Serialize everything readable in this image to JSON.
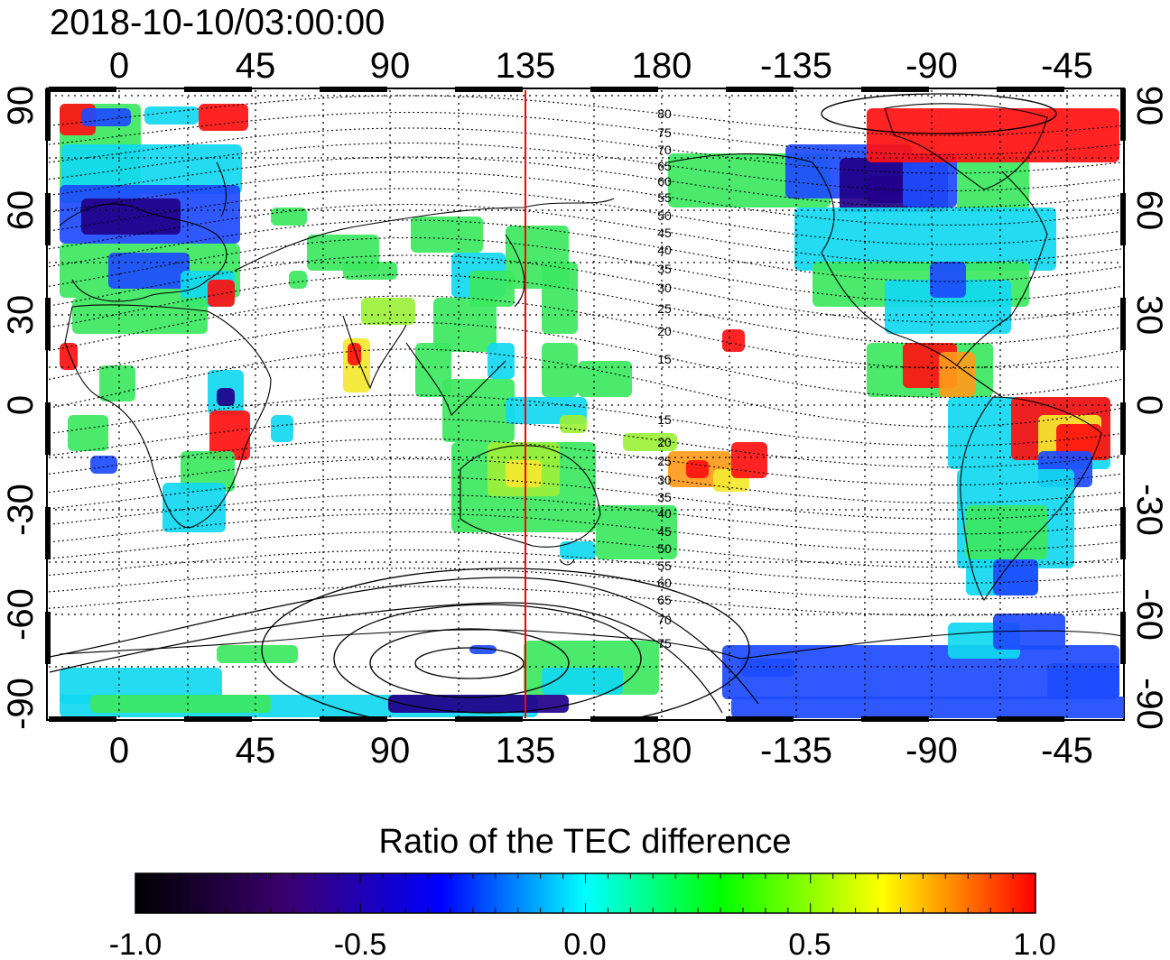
{
  "title": "2018-10-10/03:00:00",
  "map": {
    "lon_ticks": [
      "0",
      "45",
      "90",
      "135",
      "180",
      "-135",
      "-90",
      "-45"
    ],
    "lat_ticks_left": [
      "90",
      "60",
      "30",
      "0",
      "-30",
      "-60",
      "-90"
    ],
    "lat_ticks_right": [
      "90",
      "60",
      "30",
      "0",
      "-30",
      "-60",
      "-90"
    ],
    "north_contour_labels": [
      "80",
      "75",
      "70",
      "65",
      "60",
      "55",
      "50",
      "45",
      "40",
      "35",
      "30",
      "25",
      "20",
      "15"
    ],
    "south_contour_labels": [
      "15",
      "20",
      "25",
      "30",
      "35",
      "40",
      "45",
      "50",
      "55",
      "60",
      "65",
      "70",
      "75"
    ],
    "noon_meridian_color": "#ff0000"
  },
  "colorbar": {
    "label": "Ratio of the TEC difference",
    "tick_labels": [
      "-1.0",
      "-0.5",
      "0.0",
      "0.5",
      "1.0"
    ],
    "colors": [
      "#000000",
      "#3a0070",
      "#0000ff",
      "#00ffff",
      "#00ff00",
      "#ffff00",
      "#ff0000"
    ]
  },
  "palette": {
    "deep": "#22008a",
    "blue": "#1d4bff",
    "cyan": "#11d8f0",
    "green": "#3ce861",
    "lime": "#9bf03a",
    "yellow": "#f4e830",
    "orange": "#ff9b1a",
    "red": "#ff1010"
  }
}
